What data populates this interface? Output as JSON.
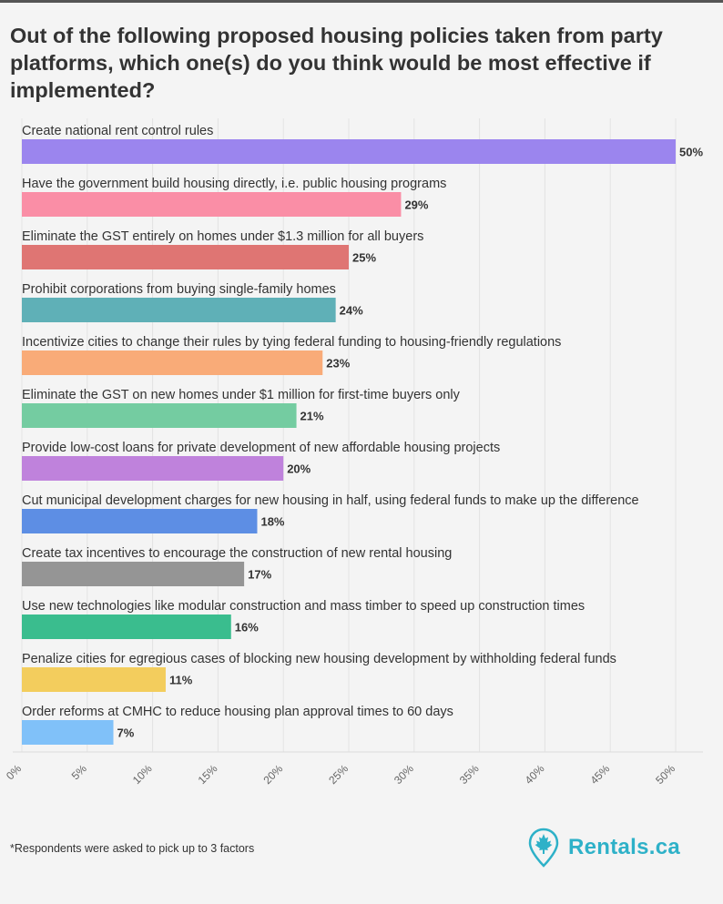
{
  "title": "Out of the following proposed housing policies taken from party platforms, which one(s) do you think would be most effective if implemented?",
  "footnote": "*Respondents were asked to pick up to 3 factors",
  "brand": {
    "name": "Rentals.ca",
    "color": "#2eb1c8",
    "icon": "maple-leaf-pin-icon"
  },
  "chart_data": {
    "type": "bar",
    "orientation": "horizontal",
    "value_suffix": "%",
    "xlim": [
      0,
      50
    ],
    "ticks": [
      "0%",
      "5%",
      "10%",
      "15%",
      "20%",
      "25%",
      "30%",
      "35%",
      "40%",
      "45%",
      "50%"
    ],
    "tick_values": [
      0,
      5,
      10,
      15,
      20,
      25,
      30,
      35,
      40,
      45,
      50
    ],
    "grid": true,
    "bars": [
      {
        "label": "Create national rent control rules",
        "value": 50,
        "color": "#9b85ee"
      },
      {
        "label": "Have the government build housing directly, i.e. public housing programs",
        "value": 29,
        "color": "#fa8ea6"
      },
      {
        "label": "Eliminate the GST entirely on homes under $1.3 million for all buyers",
        "value": 25,
        "color": "#df7573"
      },
      {
        "label": "Prohibit corporations from buying single-family homes",
        "value": 24,
        "color": "#5fb0b7"
      },
      {
        "label": "Incentivize cities to change their rules by tying federal funding to housing-friendly regulations",
        "value": 23,
        "color": "#f9ab78"
      },
      {
        "label": "Eliminate the GST on new homes under $1 million for first-time buyers only",
        "value": 21,
        "color": "#74cca1"
      },
      {
        "label": "Provide low-cost loans for private development of new affordable housing projects",
        "value": 20,
        "color": "#bf82dc"
      },
      {
        "label": "Cut municipal development charges for new housing in half, using federal funds to make up the difference",
        "value": 18,
        "color": "#5d8ee4"
      },
      {
        "label": "Create tax incentives to encourage the construction of new rental housing",
        "value": 17,
        "color": "#959595"
      },
      {
        "label": "Use new technologies like modular construction and mass timber to speed up construction times",
        "value": 16,
        "color": "#3abd8e"
      },
      {
        "label": "Penalize cities for egregious cases of blocking new housing development by withholding federal funds",
        "value": 11,
        "color": "#f3cd5d"
      },
      {
        "label": "Order reforms at CMHC to reduce housing plan approval times to 60 days",
        "value": 7,
        "color": "#80c1f9"
      }
    ]
  }
}
